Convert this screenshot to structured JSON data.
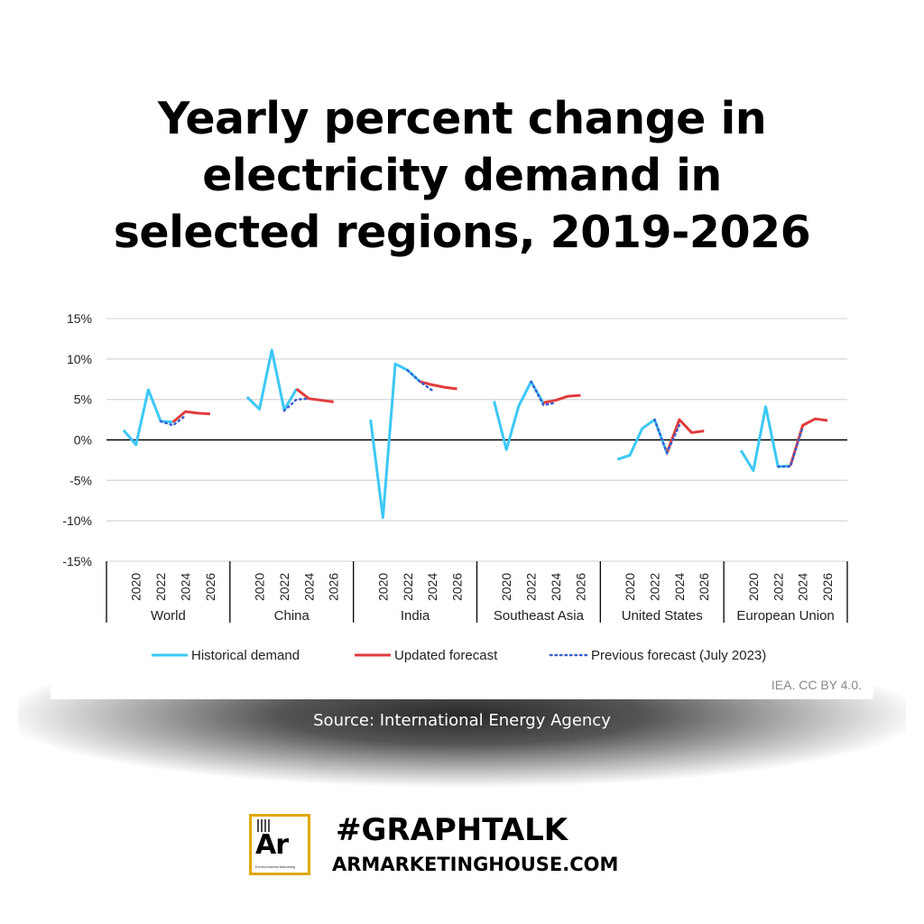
{
  "title": "Yearly percent change in electricity demand in selected regions, 2019-2026",
  "title_lines": [
    "Yearly percent change in",
    "electricity demand in",
    "selected regions, 2019-2026"
  ],
  "source": "Source: International Energy Agency",
  "credit": "IEA. CC BY 4.0.",
  "branding": {
    "hashtag": "#GRAPHTALK",
    "website": "ARMARKETINGHOUSE.COM",
    "logo_text": "Ar",
    "logo_subtext": "Environmental Marketing"
  },
  "chart_data": {
    "type": "line",
    "ylim": [
      -15,
      15
    ],
    "yticks": [
      15,
      10,
      5,
      0,
      -5,
      -10,
      -15
    ],
    "ytick_labels": [
      "15%",
      "10%",
      "5%",
      "0%",
      "-5%",
      "-10%",
      "-15%"
    ],
    "grid": true,
    "legend_position": "bottom",
    "year_tick_labels": [
      "2020",
      "2022",
      "2024",
      "2026"
    ],
    "years": [
      2019,
      2020,
      2021,
      2022,
      2023,
      2024,
      2025,
      2026
    ],
    "colors": {
      "historical": "#3cc8f5",
      "updated": "#e03c3c",
      "previous": "#3a5fd0"
    },
    "legend": {
      "historical": "Historical demand",
      "updated": "Updated forecast",
      "previous": "Previous forecast (July 2023)"
    },
    "groups": [
      {
        "name": "World",
        "historical": [
          [
            2019,
            1.2
          ],
          [
            2020,
            -0.6
          ],
          [
            2021,
            6.2
          ],
          [
            2022,
            2.3
          ],
          [
            2023,
            2.2
          ]
        ],
        "updated": [
          [
            2023,
            2.2
          ],
          [
            2024,
            3.5
          ],
          [
            2025,
            3.3
          ],
          [
            2026,
            3.2
          ]
        ],
        "previous": [
          [
            2022,
            2.3
          ],
          [
            2023,
            1.8
          ],
          [
            2024,
            3.0
          ]
        ]
      },
      {
        "name": "China",
        "historical": [
          [
            2019,
            5.3
          ],
          [
            2020,
            3.8
          ],
          [
            2021,
            11.1
          ],
          [
            2022,
            3.7
          ],
          [
            2023,
            6.3
          ]
        ],
        "updated": [
          [
            2023,
            6.3
          ],
          [
            2024,
            5.1
          ],
          [
            2025,
            4.9
          ],
          [
            2026,
            4.7
          ]
        ],
        "previous": [
          [
            2022,
            3.6
          ],
          [
            2023,
            5.0
          ],
          [
            2024,
            5.1
          ]
        ]
      },
      {
        "name": "India",
        "historical": [
          [
            2019,
            2.5
          ],
          [
            2020,
            -9.6
          ],
          [
            2021,
            9.4
          ],
          [
            2022,
            8.6
          ],
          [
            2023,
            7.2
          ]
        ],
        "updated": [
          [
            2023,
            7.2
          ],
          [
            2024,
            6.8
          ],
          [
            2025,
            6.5
          ],
          [
            2026,
            6.3
          ]
        ],
        "previous": [
          [
            2022,
            8.6
          ],
          [
            2023,
            7.2
          ],
          [
            2024,
            6.1
          ]
        ]
      },
      {
        "name": "Southeast Asia",
        "historical": [
          [
            2019,
            4.8
          ],
          [
            2020,
            -1.2
          ],
          [
            2021,
            4.2
          ],
          [
            2022,
            7.2
          ],
          [
            2023,
            4.5
          ]
        ],
        "updated": [
          [
            2023,
            4.6
          ],
          [
            2024,
            4.9
          ],
          [
            2025,
            5.4
          ],
          [
            2026,
            5.5
          ]
        ],
        "previous": [
          [
            2022,
            7.2
          ],
          [
            2023,
            4.3
          ],
          [
            2024,
            4.6
          ]
        ]
      },
      {
        "name": "United States",
        "historical": [
          [
            2019,
            -2.4
          ],
          [
            2020,
            -1.9
          ],
          [
            2021,
            1.4
          ],
          [
            2022,
            2.5
          ],
          [
            2023,
            -1.6
          ]
        ],
        "updated": [
          [
            2023,
            -1.6
          ],
          [
            2024,
            2.5
          ],
          [
            2025,
            0.9
          ],
          [
            2026,
            1.1
          ]
        ],
        "previous": [
          [
            2022,
            2.5
          ],
          [
            2023,
            -1.6
          ],
          [
            2024,
            1.8
          ]
        ]
      },
      {
        "name": "European Union",
        "historical": [
          [
            2019,
            -1.3
          ],
          [
            2020,
            -3.8
          ],
          [
            2021,
            4.1
          ],
          [
            2022,
            -3.3
          ],
          [
            2023,
            -3.2
          ]
        ],
        "updated": [
          [
            2023,
            -3.2
          ],
          [
            2024,
            1.8
          ],
          [
            2025,
            2.6
          ],
          [
            2026,
            2.4
          ]
        ],
        "previous": [
          [
            2022,
            -3.3
          ],
          [
            2023,
            -3.3
          ],
          [
            2024,
            1.6
          ]
        ]
      }
    ]
  }
}
